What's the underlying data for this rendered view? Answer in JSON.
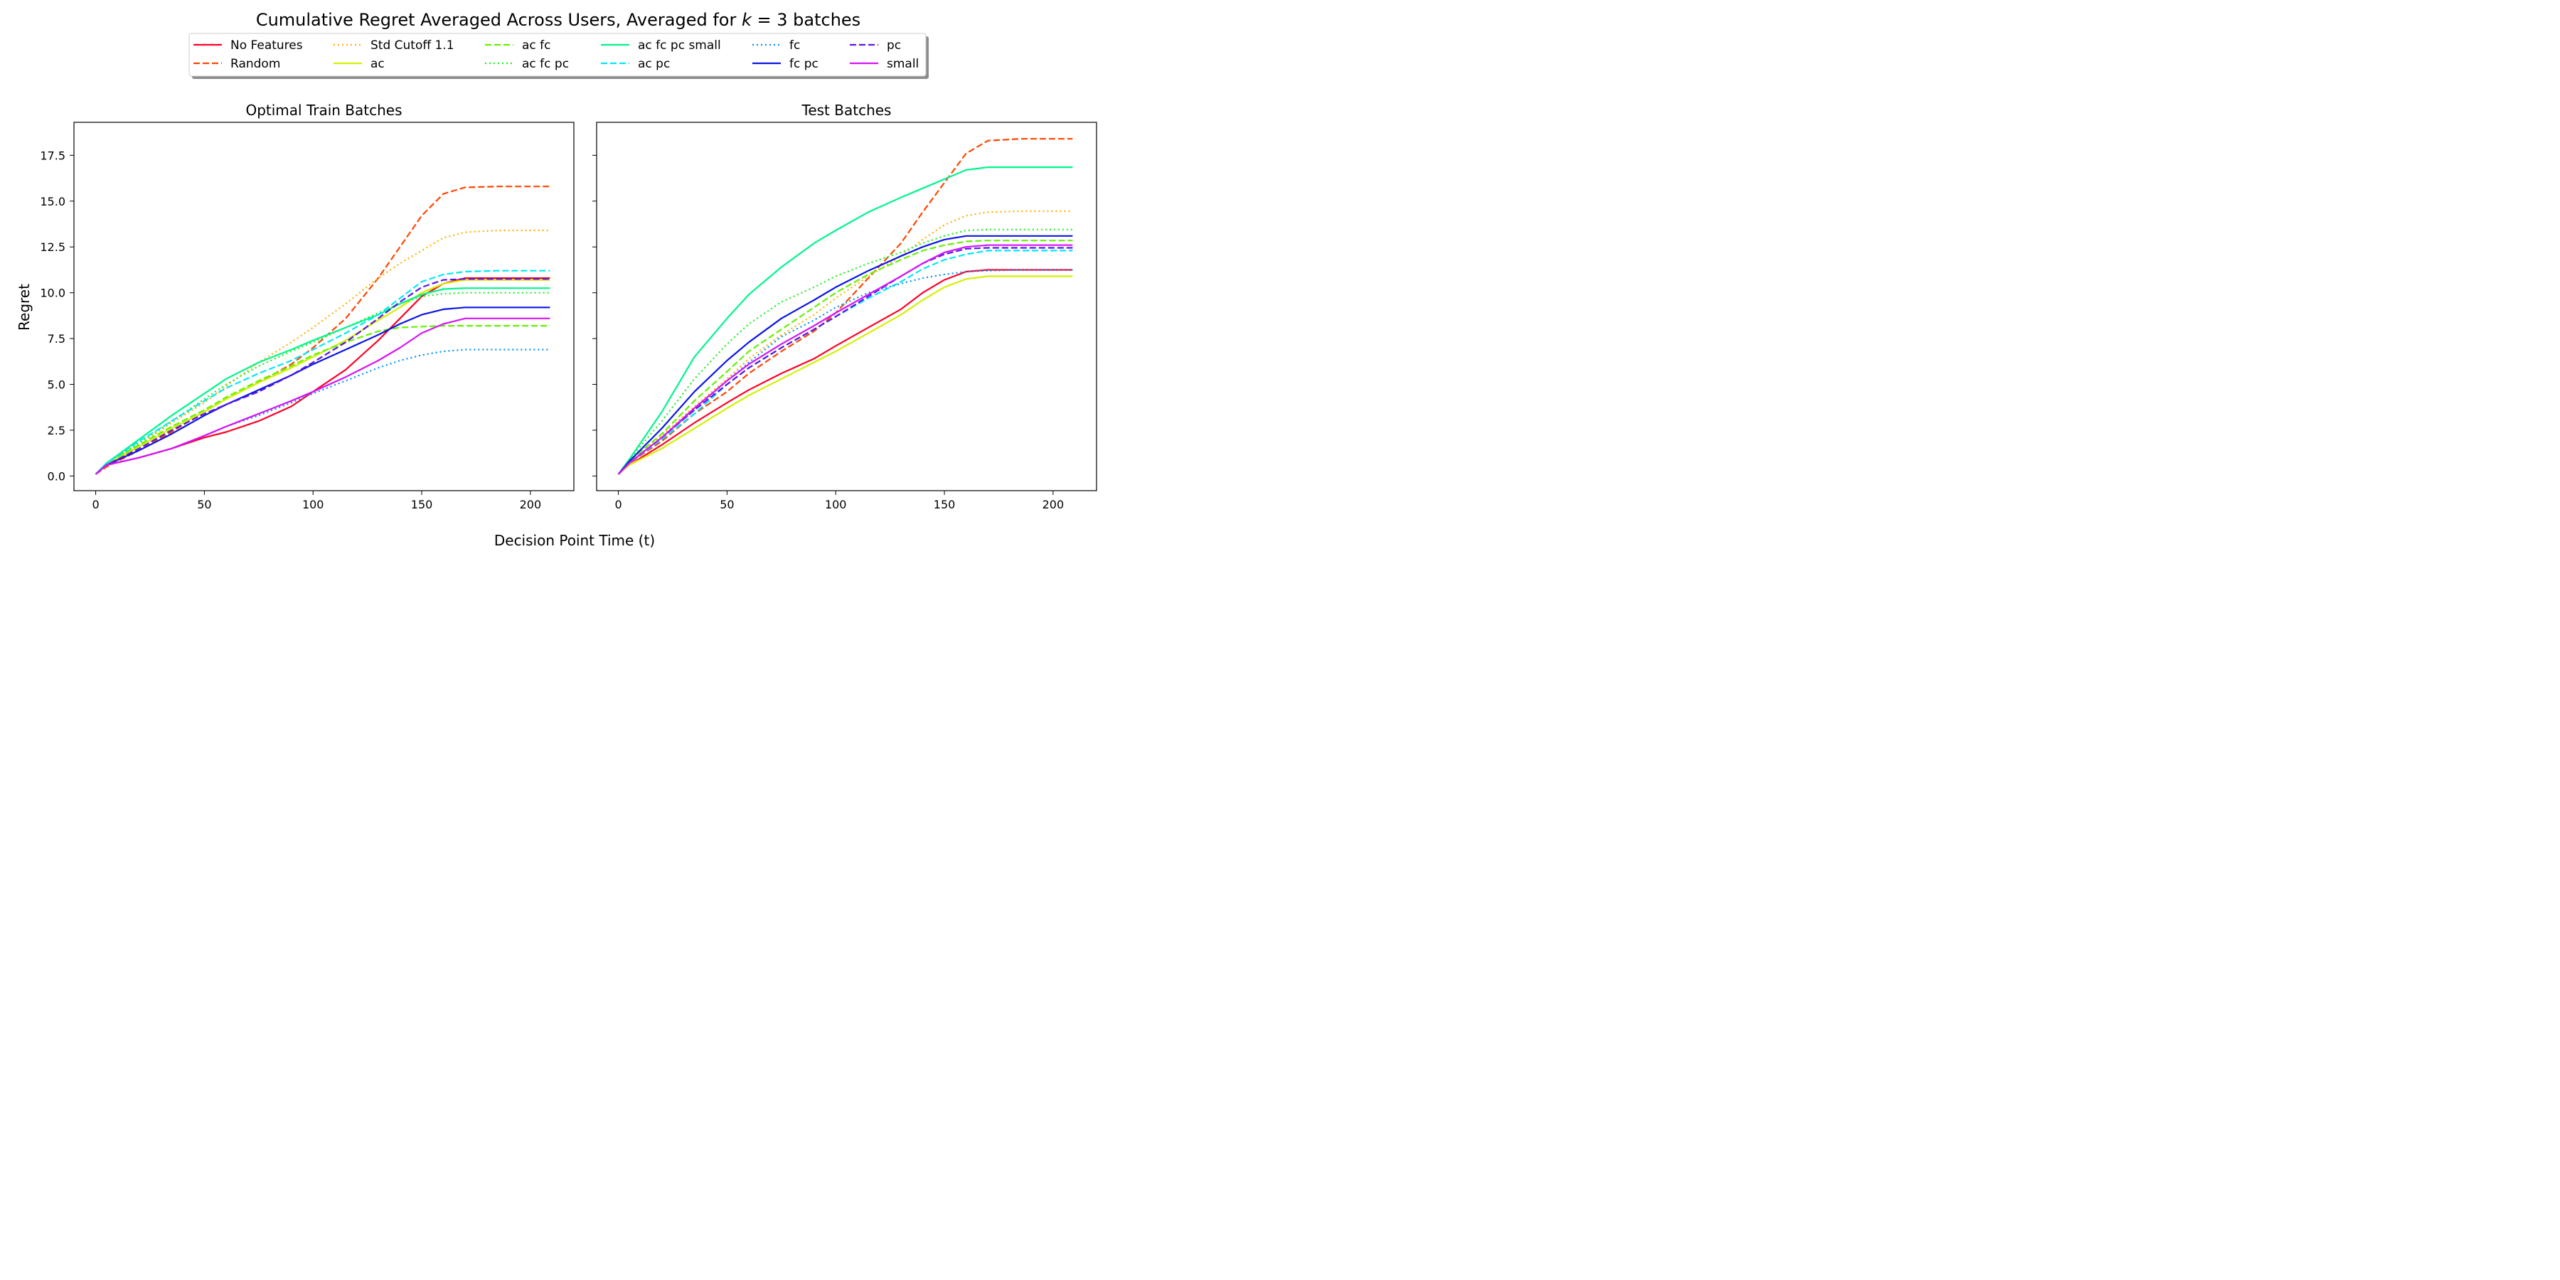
{
  "figure": {
    "title_prefix": "Cumulative Regret Averaged Across Users, Averaged for ",
    "title_k": "k",
    "title_mid": " = 3",
    "title_suffix": " batches",
    "xlabel": "Decision Point Time (t)",
    "ylabel": "Regret"
  },
  "legend": {
    "placement": "upper-center",
    "columns": 6,
    "entries": [
      {
        "name": "No Features",
        "color": "#ff0026",
        "dash": "solid"
      },
      {
        "name": "Random",
        "color": "#ff4500",
        "dash": "dashed"
      },
      {
        "name": "Std Cutoff 1.1",
        "color": "#ffb000",
        "dash": "dotted"
      },
      {
        "name": "ac",
        "color": "#d4f000",
        "dash": "solid"
      },
      {
        "name": "ac fc",
        "color": "#66f200",
        "dash": "dashed"
      },
      {
        "name": "ac fc pc",
        "color": "#1ef01e",
        "dash": "dotted"
      },
      {
        "name": "ac fc pc small",
        "color": "#00f58c",
        "dash": "solid"
      },
      {
        "name": "ac pc",
        "color": "#00e8f8",
        "dash": "dashed"
      },
      {
        "name": "fc",
        "color": "#0090ff",
        "dash": "dotted"
      },
      {
        "name": "fc pc",
        "color": "#0a14e8",
        "dash": "solid"
      },
      {
        "name": "pc",
        "color": "#5a14e6",
        "dash": "dashed"
      },
      {
        "name": "small",
        "color": "#d414f5",
        "dash": "solid"
      }
    ]
  },
  "chart_data": [
    {
      "type": "line",
      "title": "Optimal Train Batches",
      "xlim": [
        -10,
        220
      ],
      "ylim": [
        -0.8,
        19.3
      ],
      "xticks": [
        0,
        50,
        100,
        150,
        200
      ],
      "yticks": [
        0.0,
        2.5,
        5.0,
        7.5,
        10.0,
        12.5,
        15.0,
        17.5
      ],
      "grid": false,
      "x": [
        0,
        5,
        20,
        35,
        50,
        60,
        75,
        90,
        100,
        115,
        130,
        140,
        150,
        160,
        170,
        185,
        209
      ],
      "series": [
        {
          "name": "No Features",
          "values": [
            0.1,
            0.6,
            1.0,
            1.5,
            2.1,
            2.4,
            3.0,
            3.8,
            4.6,
            5.8,
            7.4,
            8.6,
            9.8,
            10.5,
            10.8,
            10.8,
            10.8
          ]
        },
        {
          "name": "Random",
          "values": [
            0.1,
            0.5,
            1.4,
            2.4,
            3.5,
            4.2,
            5.1,
            6.1,
            7.0,
            8.6,
            10.8,
            12.5,
            14.2,
            15.4,
            15.75,
            15.8,
            15.8
          ]
        },
        {
          "name": "Std Cutoff 1.1",
          "values": [
            0.1,
            0.6,
            1.7,
            2.9,
            4.0,
            4.9,
            6.2,
            7.3,
            8.1,
            9.4,
            10.8,
            11.6,
            12.3,
            13.0,
            13.3,
            13.4,
            13.4
          ]
        },
        {
          "name": "ac",
          "values": [
            0.1,
            0.6,
            1.6,
            2.6,
            3.5,
            4.2,
            5.1,
            5.9,
            6.5,
            7.4,
            8.5,
            9.2,
            10.0,
            10.5,
            10.7,
            10.7,
            10.7
          ]
        },
        {
          "name": "ac fc",
          "values": [
            0.1,
            0.7,
            1.7,
            2.7,
            3.6,
            4.3,
            5.2,
            6.0,
            6.6,
            7.3,
            7.9,
            8.1,
            8.15,
            8.2,
            8.2,
            8.2,
            8.2
          ]
        },
        {
          "name": "ac fc pc",
          "values": [
            0.1,
            0.7,
            1.8,
            3.0,
            4.2,
            5.0,
            6.0,
            6.8,
            7.3,
            8.1,
            8.9,
            9.4,
            9.8,
            9.95,
            10.0,
            10.0,
            10.0
          ]
        },
        {
          "name": "ac fc pc small",
          "values": [
            0.1,
            0.7,
            2.0,
            3.3,
            4.5,
            5.3,
            6.2,
            6.9,
            7.4,
            8.1,
            8.8,
            9.4,
            9.9,
            10.2,
            10.25,
            10.25,
            10.25
          ]
        },
        {
          "name": "ac pc",
          "values": [
            0.1,
            0.7,
            1.9,
            3.0,
            4.1,
            4.8,
            5.6,
            6.3,
            6.9,
            7.8,
            8.8,
            9.7,
            10.6,
            11.0,
            11.15,
            11.2,
            11.2
          ]
        },
        {
          "name": "fc",
          "values": [
            0.1,
            0.6,
            1.0,
            1.5,
            2.2,
            2.7,
            3.3,
            4.0,
            4.5,
            5.2,
            5.9,
            6.3,
            6.6,
            6.8,
            6.9,
            6.9,
            6.9
          ]
        },
        {
          "name": "fc pc",
          "values": [
            0.1,
            0.6,
            1.4,
            2.3,
            3.3,
            3.9,
            4.7,
            5.5,
            6.1,
            6.9,
            7.7,
            8.3,
            8.8,
            9.1,
            9.2,
            9.2,
            9.2
          ]
        },
        {
          "name": "pc",
          "values": [
            0.1,
            0.6,
            1.5,
            2.5,
            3.4,
            3.9,
            4.6,
            5.5,
            6.2,
            7.3,
            8.6,
            9.5,
            10.3,
            10.7,
            10.75,
            10.75,
            10.75
          ]
        },
        {
          "name": "small",
          "values": [
            0.1,
            0.6,
            1.0,
            1.5,
            2.2,
            2.7,
            3.4,
            4.1,
            4.6,
            5.4,
            6.3,
            7.0,
            7.8,
            8.3,
            8.6,
            8.6,
            8.6
          ]
        }
      ]
    },
    {
      "type": "line",
      "title": "Test Batches",
      "xlim": [
        -10,
        220
      ],
      "ylim": [
        -0.8,
        19.3
      ],
      "xticks": [
        0,
        50,
        100,
        150,
        200
      ],
      "yticks": [
        0.0,
        2.5,
        5.0,
        7.5,
        10.0,
        12.5,
        15.0,
        17.5
      ],
      "grid": false,
      "x": [
        0,
        5,
        20,
        35,
        50,
        60,
        75,
        90,
        100,
        115,
        130,
        140,
        150,
        160,
        170,
        185,
        209
      ],
      "series": [
        {
          "name": "No Features",
          "values": [
            0.1,
            0.6,
            1.7,
            2.9,
            4.0,
            4.7,
            5.6,
            6.4,
            7.1,
            8.1,
            9.1,
            10.0,
            10.7,
            11.15,
            11.25,
            11.25,
            11.25
          ]
        },
        {
          "name": "Random",
          "values": [
            0.1,
            0.7,
            1.9,
            3.4,
            4.6,
            5.6,
            6.8,
            7.9,
            8.9,
            10.8,
            12.7,
            14.4,
            16.0,
            17.6,
            18.3,
            18.4,
            18.4
          ]
        },
        {
          "name": "Std Cutoff 1.1",
          "values": [
            0.1,
            0.7,
            2.2,
            3.8,
            5.3,
            6.4,
            7.7,
            8.8,
            9.7,
            10.9,
            12.0,
            12.9,
            13.7,
            14.2,
            14.4,
            14.45,
            14.45
          ]
        },
        {
          "name": "ac",
          "values": [
            0.1,
            0.6,
            1.5,
            2.6,
            3.7,
            4.4,
            5.3,
            6.2,
            6.8,
            7.8,
            8.8,
            9.6,
            10.3,
            10.75,
            10.9,
            10.9,
            10.9
          ]
        },
        {
          "name": "ac fc",
          "values": [
            0.1,
            0.8,
            2.3,
            4.1,
            5.7,
            6.8,
            8.0,
            9.2,
            10.0,
            11.0,
            11.8,
            12.3,
            12.6,
            12.8,
            12.85,
            12.85,
            12.85
          ]
        },
        {
          "name": "ac fc pc",
          "values": [
            0.1,
            0.9,
            3.0,
            5.3,
            7.2,
            8.3,
            9.5,
            10.3,
            10.9,
            11.6,
            12.2,
            12.7,
            13.1,
            13.4,
            13.45,
            13.45,
            13.45
          ]
        },
        {
          "name": "ac fc pc small",
          "values": [
            0.1,
            0.9,
            3.5,
            6.5,
            8.6,
            9.9,
            11.4,
            12.7,
            13.4,
            14.4,
            15.2,
            15.7,
            16.2,
            16.7,
            16.85,
            16.85,
            16.85
          ]
        },
        {
          "name": "ac pc",
          "values": [
            0.1,
            0.7,
            2.0,
            3.4,
            5.0,
            5.9,
            7.0,
            8.0,
            8.7,
            9.7,
            10.6,
            11.3,
            11.8,
            12.1,
            12.3,
            12.3,
            12.3
          ]
        },
        {
          "name": "fc",
          "values": [
            0.1,
            0.7,
            2.1,
            3.6,
            5.2,
            6.2,
            7.6,
            8.5,
            9.2,
            10.0,
            10.5,
            10.8,
            11.0,
            11.15,
            11.2,
            11.25,
            11.25
          ]
        },
        {
          "name": "fc pc",
          "values": [
            0.1,
            0.8,
            2.6,
            4.6,
            6.3,
            7.3,
            8.6,
            9.6,
            10.3,
            11.2,
            12.0,
            12.5,
            12.9,
            13.1,
            13.1,
            13.1,
            13.1
          ]
        },
        {
          "name": "pc",
          "values": [
            0.1,
            0.7,
            2.1,
            3.6,
            5.0,
            5.9,
            7.0,
            8.0,
            8.7,
            9.8,
            10.9,
            11.6,
            12.1,
            12.4,
            12.45,
            12.45,
            12.45
          ]
        },
        {
          "name": "small",
          "values": [
            0.1,
            0.7,
            2.1,
            3.7,
            5.2,
            6.1,
            7.2,
            8.2,
            8.9,
            9.9,
            10.9,
            11.6,
            12.2,
            12.5,
            12.6,
            12.6,
            12.6
          ]
        }
      ]
    }
  ]
}
